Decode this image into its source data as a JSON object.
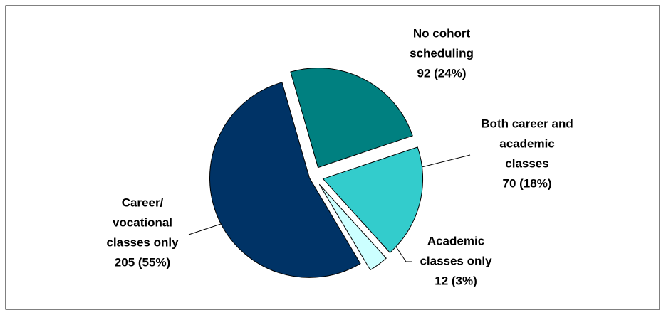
{
  "chart_data": {
    "type": "pie",
    "categories": [
      [
        "No cohort",
        "scheduling"
      ],
      [
        "Both career and",
        "academic",
        "classes"
      ],
      [
        "Academic",
        "classes only"
      ],
      [
        "Career/",
        "vocational",
        "classes only"
      ]
    ],
    "values": [
      92,
      70,
      12,
      205
    ],
    "value_labels": [
      "92 (24%)",
      "70 (18%)",
      "12 (3%)",
      "205 (55%)"
    ],
    "colors": [
      "#008080",
      "#33cccc",
      "#ccffff",
      "#003366"
    ]
  }
}
